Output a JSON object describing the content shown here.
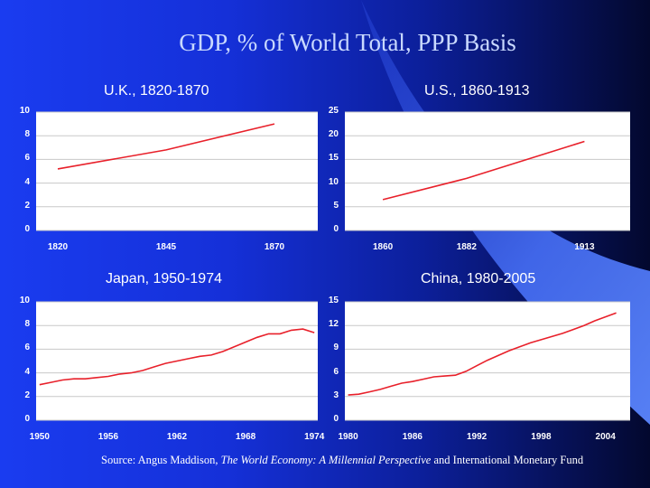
{
  "title": "GDP, % of World Total, PPP Basis",
  "source": {
    "prefix": "Source: Angus Maddison, ",
    "book": "The World Economy: A Millennial Perspective",
    "suffix": " and International Monetary Fund"
  },
  "colors": {
    "line": "#e8202a",
    "grid": "#c8c8c8",
    "tick_text": "#ffffff"
  },
  "chart_data": [
    {
      "type": "line",
      "title": "U.K., 1820-1870",
      "ylim": [
        0,
        10
      ],
      "yticks": [
        "0",
        "2",
        "4",
        "6",
        "8",
        "10"
      ],
      "xlim": [
        1815,
        1880
      ],
      "xticks": [
        {
          "label": "1820",
          "value": 1820
        },
        {
          "label": "1845",
          "value": 1845
        },
        {
          "label": "1870",
          "value": 1870
        }
      ],
      "x": [
        1820,
        1845,
        1870
      ],
      "values": [
        5.2,
        6.8,
        9.0
      ]
    },
    {
      "type": "line",
      "title": "U.S., 1860-1913",
      "ylim": [
        0,
        25
      ],
      "yticks": [
        "0",
        "5",
        "10",
        "15",
        "20",
        "25"
      ],
      "xlim": [
        1850,
        1925
      ],
      "xticks": [
        {
          "label": "1860",
          "value": 1860
        },
        {
          "label": "1882",
          "value": 1882
        },
        {
          "label": "1913",
          "value": 1913
        }
      ],
      "x": [
        1860,
        1882,
        1913
      ],
      "values": [
        6.5,
        11.0,
        18.8
      ]
    },
    {
      "type": "line",
      "title": "Japan, 1950-1974",
      "ylim": [
        0,
        10
      ],
      "yticks": [
        "0",
        "2",
        "4",
        "6",
        "8",
        "10"
      ],
      "xlim": [
        1949.7,
        1974.3
      ],
      "xticks": [
        {
          "label": "1950",
          "value": 1950
        },
        {
          "label": "1956",
          "value": 1956
        },
        {
          "label": "1962",
          "value": 1962
        },
        {
          "label": "1968",
          "value": 1968
        },
        {
          "label": "1974",
          "value": 1974
        }
      ],
      "x": [
        1950,
        1951,
        1952,
        1953,
        1954,
        1955,
        1956,
        1957,
        1958,
        1959,
        1960,
        1961,
        1962,
        1963,
        1964,
        1965,
        1966,
        1967,
        1968,
        1969,
        1970,
        1971,
        1972,
        1973,
        1974
      ],
      "values": [
        3.0,
        3.2,
        3.4,
        3.5,
        3.5,
        3.6,
        3.7,
        3.9,
        4.0,
        4.2,
        4.5,
        4.8,
        5.0,
        5.2,
        5.4,
        5.5,
        5.8,
        6.2,
        6.6,
        7.0,
        7.3,
        7.3,
        7.6,
        7.7,
        7.4
      ]
    },
    {
      "type": "line",
      "title": "China, 1980-2005",
      "ylim": [
        0,
        15
      ],
      "yticks": [
        "0",
        "3",
        "6",
        "9",
        "12",
        "15"
      ],
      "xlim": [
        1979.7,
        2006.3
      ],
      "xticks": [
        {
          "label": "1980",
          "value": 1980
        },
        {
          "label": "1986",
          "value": 1986
        },
        {
          "label": "1992",
          "value": 1992
        },
        {
          "label": "1998",
          "value": 1998
        },
        {
          "label": "2004",
          "value": 2004
        }
      ],
      "x": [
        1980,
        1981,
        1982,
        1983,
        1984,
        1985,
        1986,
        1987,
        1988,
        1989,
        1990,
        1991,
        1992,
        1993,
        1994,
        1995,
        1996,
        1997,
        1998,
        1999,
        2000,
        2001,
        2002,
        2003,
        2004,
        2005
      ],
      "values": [
        3.2,
        3.3,
        3.6,
        3.9,
        4.3,
        4.7,
        4.9,
        5.2,
        5.5,
        5.6,
        5.7,
        6.2,
        6.9,
        7.6,
        8.2,
        8.8,
        9.3,
        9.8,
        10.2,
        10.6,
        11.0,
        11.5,
        12.0,
        12.6,
        13.1,
        13.6
      ]
    }
  ]
}
